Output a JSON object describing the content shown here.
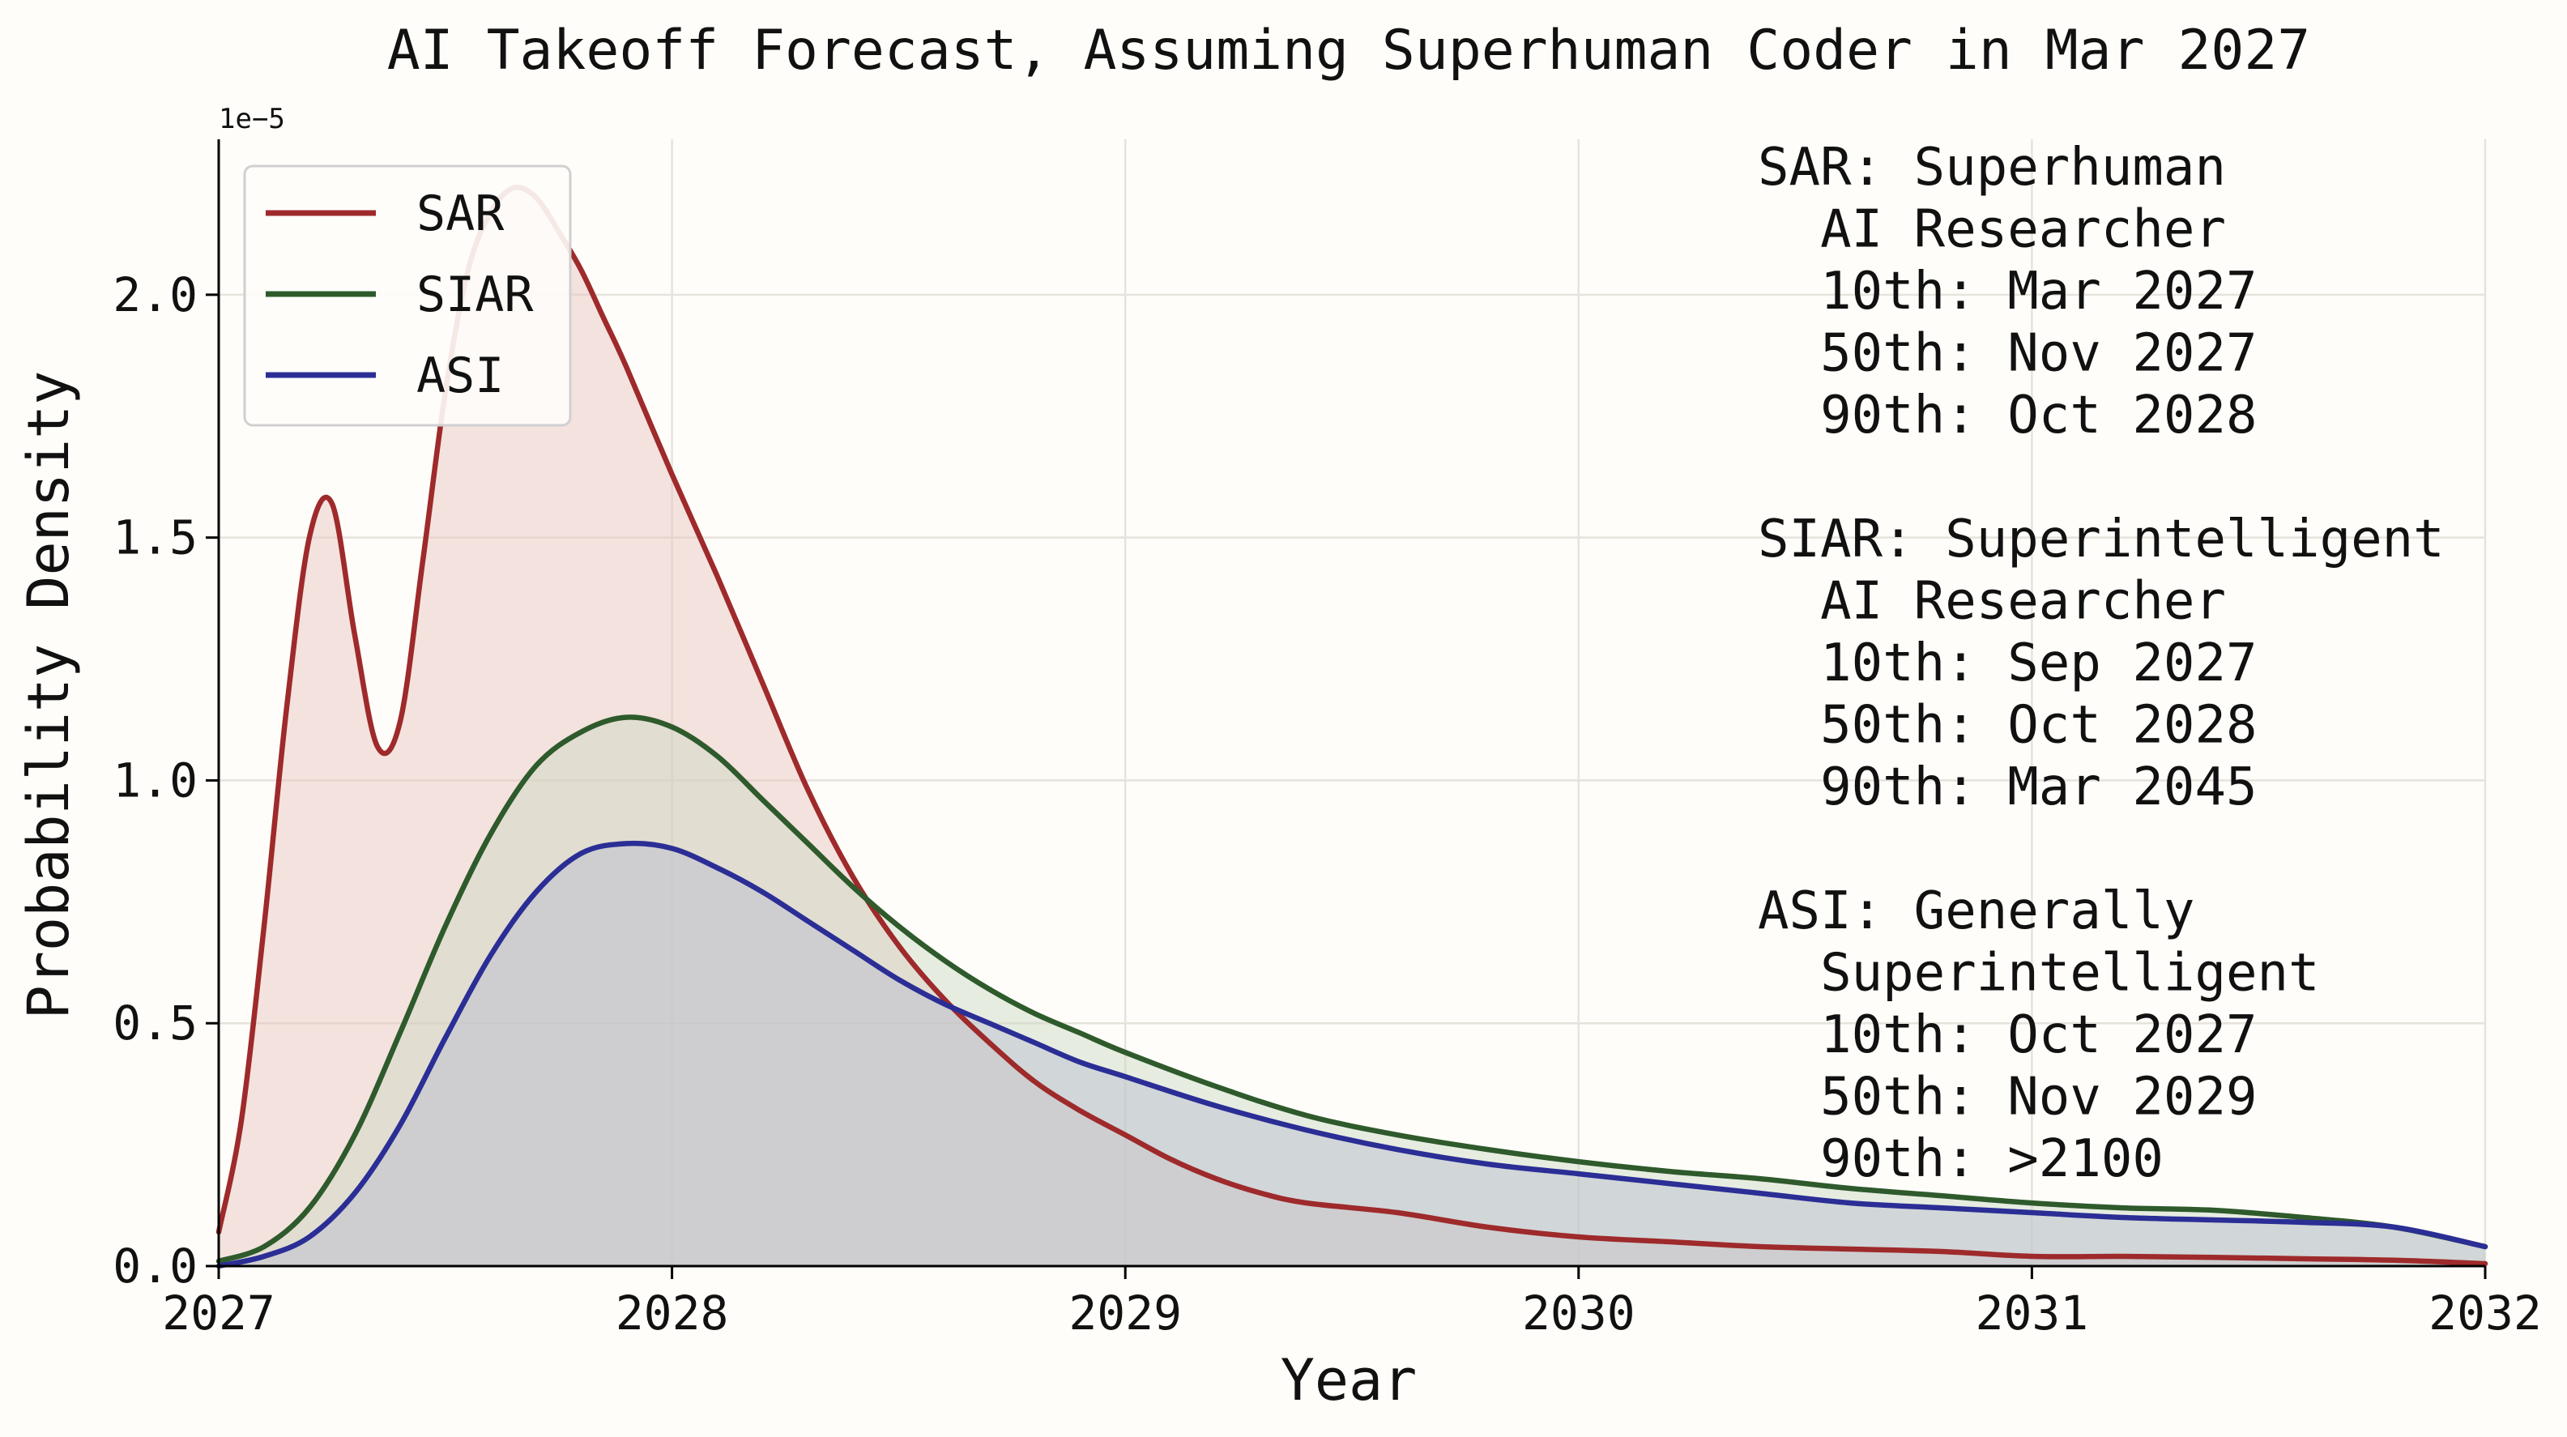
{
  "chart_data": {
    "type": "area",
    "title": "AI Takeoff Forecast, Assuming Superhuman Coder in Mar 2027",
    "xlabel": "Year",
    "ylabel": "Probability Density",
    "y_scale_label": "1e−5",
    "xlim": [
      2027,
      2032
    ],
    "ylim": [
      0,
      2.32
    ],
    "xticks": [
      2027,
      2028,
      2029,
      2030,
      2031,
      2032
    ],
    "xtick_labels": [
      "2027",
      "2028",
      "2029",
      "2030",
      "2031",
      "2032"
    ],
    "yticks": [
      0,
      0.5,
      1.0,
      1.5,
      2.0
    ],
    "ytick_labels": [
      "0.0",
      "0.5",
      "1.0",
      "1.5",
      "2.0"
    ],
    "grid": true,
    "legend_position": "top-left",
    "series": [
      {
        "name": "SAR",
        "color": "#9e2a2b",
        "fill": "#e8c2bc",
        "x": [
          2027.0,
          2027.05,
          2027.1,
          2027.15,
          2027.2,
          2027.25,
          2027.3,
          2027.35,
          2027.4,
          2027.45,
          2027.5,
          2027.55,
          2027.6,
          2027.65,
          2027.7,
          2027.75,
          2027.8,
          2027.85,
          2027.9,
          2028.0,
          2028.1,
          2028.2,
          2028.3,
          2028.4,
          2028.5,
          2028.6,
          2028.7,
          2028.8,
          2028.9,
          2029.0,
          2029.1,
          2029.2,
          2029.3,
          2029.4,
          2029.6,
          2029.8,
          2030.0,
          2030.2,
          2030.4,
          2030.6,
          2030.8,
          2031.0,
          2031.2,
          2031.4,
          2031.6,
          2031.8,
          2032.0
        ],
        "values": [
          0.07,
          0.3,
          0.7,
          1.15,
          1.5,
          1.57,
          1.3,
          1.07,
          1.12,
          1.45,
          1.8,
          2.05,
          2.17,
          2.22,
          2.2,
          2.13,
          2.05,
          1.95,
          1.85,
          1.63,
          1.42,
          1.2,
          0.98,
          0.8,
          0.66,
          0.55,
          0.46,
          0.38,
          0.32,
          0.27,
          0.22,
          0.18,
          0.15,
          0.13,
          0.11,
          0.08,
          0.06,
          0.05,
          0.04,
          0.035,
          0.03,
          0.02,
          0.02,
          0.018,
          0.015,
          0.012,
          0.005
        ]
      },
      {
        "name": "SIAR",
        "color": "#2e5a2c",
        "fill": "#c9d6c0",
        "x": [
          2027.0,
          2027.1,
          2027.2,
          2027.3,
          2027.4,
          2027.5,
          2027.6,
          2027.7,
          2027.8,
          2027.9,
          2028.0,
          2028.1,
          2028.2,
          2028.3,
          2028.4,
          2028.5,
          2028.6,
          2028.7,
          2028.8,
          2028.9,
          2029.0,
          2029.2,
          2029.4,
          2029.6,
          2029.8,
          2030.0,
          2030.2,
          2030.4,
          2030.6,
          2030.8,
          2031.0,
          2031.2,
          2031.4,
          2031.6,
          2031.8,
          2032.0
        ],
        "values": [
          0.01,
          0.04,
          0.12,
          0.27,
          0.48,
          0.7,
          0.89,
          1.03,
          1.1,
          1.13,
          1.11,
          1.05,
          0.96,
          0.87,
          0.78,
          0.7,
          0.63,
          0.57,
          0.52,
          0.48,
          0.44,
          0.37,
          0.31,
          0.27,
          0.24,
          0.215,
          0.195,
          0.18,
          0.16,
          0.145,
          0.13,
          0.12,
          0.115,
          0.1,
          0.08,
          0.04
        ]
      },
      {
        "name": "ASI",
        "color": "#2b2e95",
        "fill": "#b8bccf",
        "x": [
          2027.0,
          2027.1,
          2027.2,
          2027.3,
          2027.4,
          2027.5,
          2027.6,
          2027.7,
          2027.8,
          2027.9,
          2028.0,
          2028.1,
          2028.2,
          2028.3,
          2028.4,
          2028.5,
          2028.6,
          2028.7,
          2028.8,
          2028.9,
          2029.0,
          2029.2,
          2029.4,
          2029.6,
          2029.8,
          2030.0,
          2030.2,
          2030.4,
          2030.6,
          2030.8,
          2031.0,
          2031.2,
          2031.4,
          2031.6,
          2031.8,
          2032.0
        ],
        "values": [
          0.0,
          0.02,
          0.06,
          0.15,
          0.29,
          0.47,
          0.64,
          0.77,
          0.85,
          0.87,
          0.86,
          0.82,
          0.77,
          0.71,
          0.65,
          0.59,
          0.54,
          0.5,
          0.46,
          0.42,
          0.39,
          0.33,
          0.28,
          0.24,
          0.21,
          0.19,
          0.17,
          0.15,
          0.13,
          0.12,
          0.11,
          0.1,
          0.095,
          0.09,
          0.08,
          0.04
        ]
      }
    ],
    "annotations": [
      "SAR: Superhuman",
      "  AI Researcher",
      "  10th: Mar 2027",
      "  50th: Nov 2027",
      "  90th: Oct 2028",
      "",
      "SIAR: Superintelligent",
      "  AI Researcher",
      "  10th: Sep 2027",
      "  50th: Oct 2028",
      "  90th: Mar 2045",
      "",
      "ASI: Generally",
      "  Superintelligent",
      "  10th: Oct 2027",
      "  50th: Nov 2029",
      "  90th: >2100"
    ]
  },
  "colors": {
    "background": "#fefdf9",
    "axis": "#000000",
    "grid": "#e6e3dc"
  }
}
